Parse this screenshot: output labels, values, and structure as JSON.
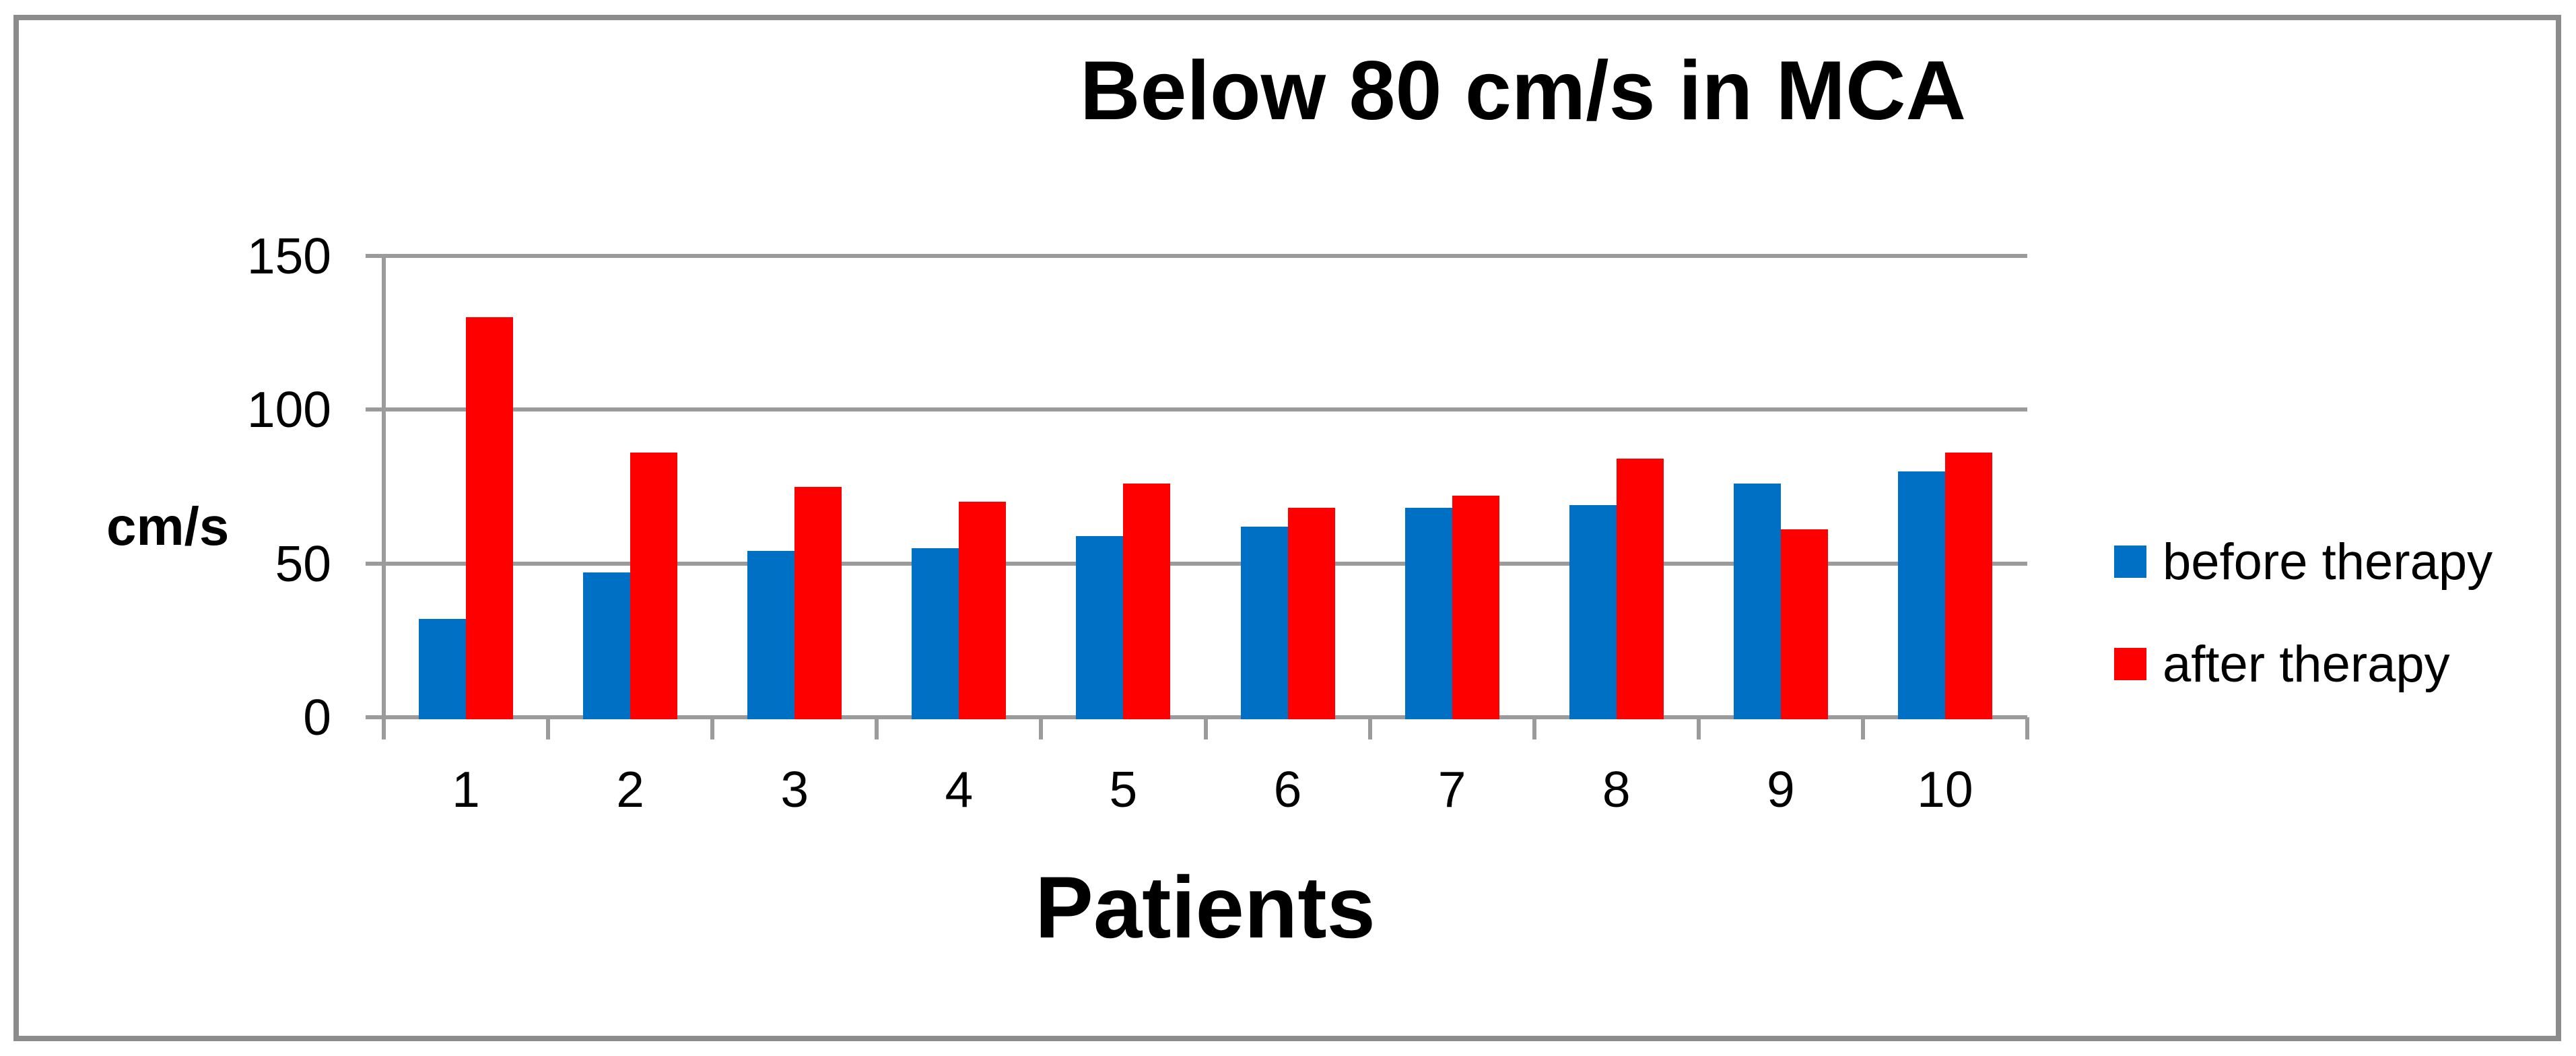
{
  "figure": {
    "title": "Below 80 cm/s in MCA",
    "y_axis_title": "cm/s",
    "x_axis_title": "Patients"
  },
  "legend": {
    "position": "right",
    "items": [
      {
        "label": "before therapy",
        "color": "#0070C4"
      },
      {
        "label": "after therapy",
        "color": "#FF0000"
      }
    ]
  },
  "chart_data": {
    "type": "bar",
    "title": "Below 80 cm/s in MCA",
    "xlabel": "Patients",
    "ylabel": "cm/s",
    "categories": [
      "1",
      "2",
      "3",
      "4",
      "5",
      "6",
      "7",
      "8",
      "9",
      "10"
    ],
    "series": [
      {
        "name": "before therapy",
        "color": "#0070C4",
        "values": [
          32,
          47,
          54,
          55,
          59,
          62,
          68,
          69,
          76,
          80
        ]
      },
      {
        "name": "after therapy",
        "color": "#FF0000",
        "values": [
          130,
          86,
          75,
          70,
          76,
          68,
          72,
          84,
          61,
          86
        ]
      }
    ],
    "ylim": [
      0,
      150
    ],
    "yticks": [
      0,
      50,
      100,
      150
    ],
    "grid": true,
    "legend_position": "right"
  },
  "colors": {
    "grid": "#9B9B9B",
    "axis": "#9B9B9B",
    "frame_border": "#8C8C8C",
    "background": "#FFFFFF",
    "text": "#000000",
    "series_before": "#0070C4",
    "series_after": "#FF0000"
  }
}
